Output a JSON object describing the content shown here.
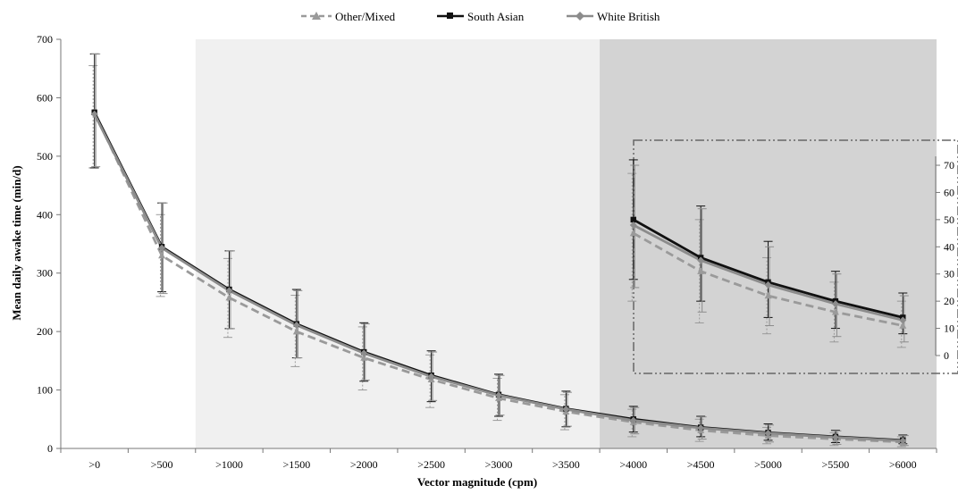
{
  "chart_data": {
    "type": "line",
    "xlabel": "Vector magnitude (cpm)",
    "ylabel": "Mean daily awake time (min/d)",
    "categories": [
      ">0",
      ">500",
      ">1000",
      ">1500",
      ">2000",
      ">2500",
      ">3000",
      ">3500",
      ">4000",
      ">4500",
      ">5000",
      ">5500",
      ">6000"
    ],
    "ylim": [
      0,
      700
    ],
    "yticks": [
      "0",
      "100",
      "200",
      "300",
      "400",
      "500",
      "600",
      "700"
    ],
    "grid": false,
    "legend_position": "top",
    "shaded_regions": [
      {
        "from_category": ">1000",
        "to_category": ">4000",
        "color": "#f0f0f0"
      },
      {
        "from_category": ">4000",
        "to_category": ">6000",
        "color": "#d3d3d3"
      }
    ],
    "series": [
      {
        "name": "Other/Mixed",
        "color": "#9a9a9a",
        "line_style": "dashed",
        "marker": "triangle",
        "values": [
          575,
          330,
          258,
          200,
          155,
          118,
          86,
          63,
          45,
          31,
          22,
          16,
          11
        ],
        "err_low": [
          480,
          260,
          190,
          140,
          100,
          70,
          48,
          32,
          20,
          12,
          8,
          5,
          3
        ],
        "err_high": [
          655,
          400,
          325,
          262,
          208,
          160,
          120,
          92,
          67,
          50,
          36,
          27,
          20
        ]
      },
      {
        "name": "South Asian",
        "color": "#111111",
        "line_style": "solid",
        "marker": "square",
        "values": [
          575,
          345,
          272,
          213,
          165,
          125,
          92,
          68,
          50,
          36,
          27,
          20,
          14
        ],
        "err_low": [
          480,
          268,
          205,
          155,
          115,
          80,
          55,
          37,
          28,
          20,
          14,
          10,
          8
        ],
        "err_high": [
          675,
          420,
          338,
          272,
          215,
          167,
          127,
          98,
          72,
          55,
          42,
          31,
          23
        ]
      },
      {
        "name": "White British",
        "color": "#8c8c8c",
        "line_style": "solid",
        "marker": "diamond",
        "values": [
          572,
          343,
          270,
          211,
          163,
          123,
          91,
          67,
          48,
          35,
          26,
          19,
          13
        ],
        "err_low": [
          482,
          265,
          205,
          155,
          117,
          82,
          57,
          38,
          25,
          16,
          11,
          7,
          5
        ],
        "err_high": [
          675,
          420,
          338,
          270,
          213,
          165,
          125,
          96,
          70,
          54,
          40,
          30,
          22
        ]
      }
    ],
    "inset": {
      "categories": [
        ">4000",
        ">4500",
        ">5000",
        ">5500",
        ">6000"
      ],
      "ylim": [
        0,
        75
      ],
      "yticks": [
        "0",
        "10",
        "20",
        "30",
        "40",
        "50",
        "60",
        "70"
      ]
    }
  }
}
